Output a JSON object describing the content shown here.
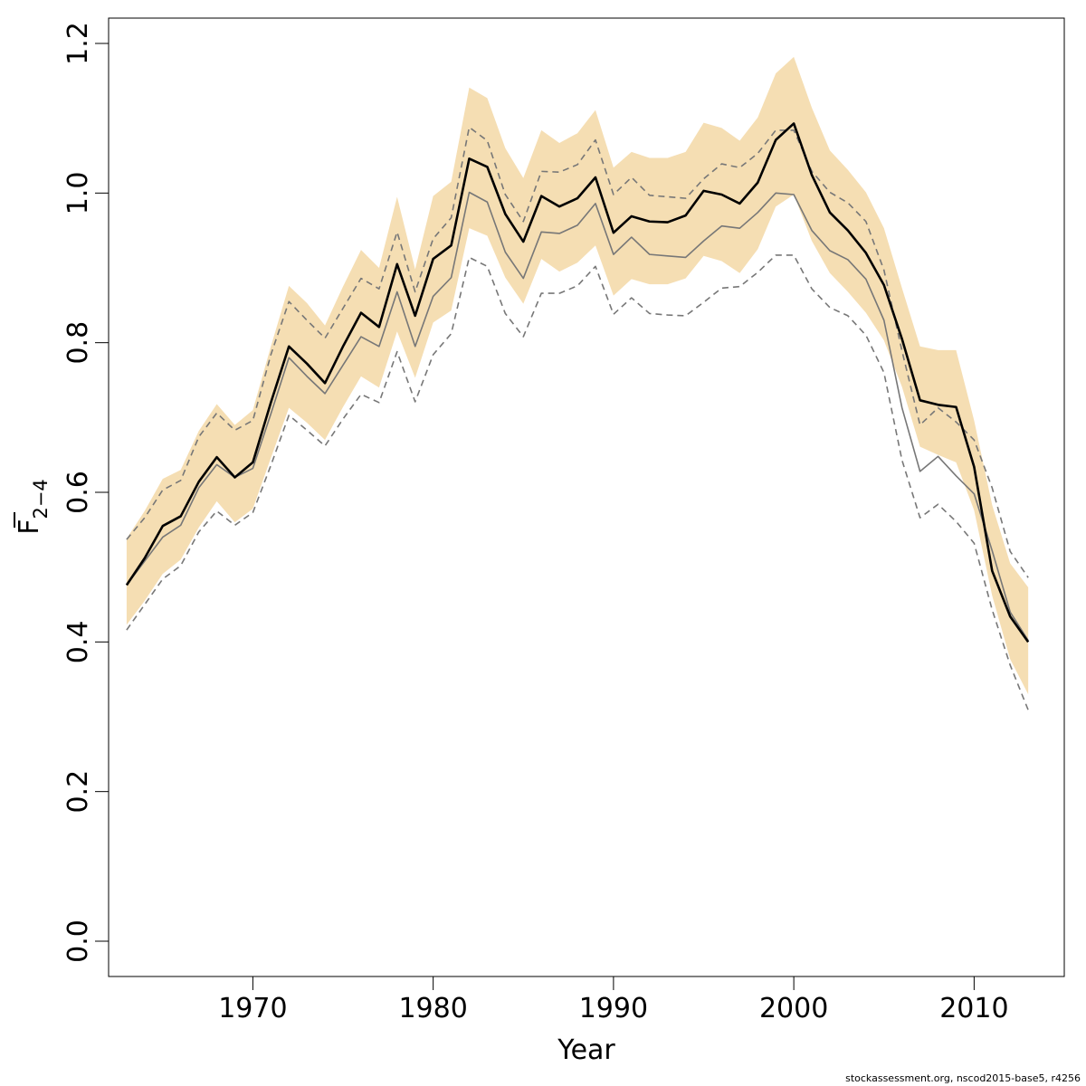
{
  "chart_data": {
    "type": "line",
    "xlabel": "Year",
    "ylabel": {
      "main": "F",
      "subscript": "2−4"
    },
    "xlim": [
      1962,
      2015
    ],
    "ylim": [
      0.0,
      1.2
    ],
    "xticks": [
      1970,
      1980,
      1990,
      2000,
      2010
    ],
    "yticks": [
      0.0,
      0.2,
      0.4,
      0.6,
      0.8,
      1.0,
      1.2
    ],
    "x": [
      1963,
      1964,
      1965,
      1966,
      1967,
      1968,
      1969,
      1970,
      1971,
      1972,
      1973,
      1974,
      1975,
      1976,
      1977,
      1978,
      1979,
      1980,
      1981,
      1982,
      1983,
      1984,
      1985,
      1986,
      1987,
      1988,
      1989,
      1990,
      1991,
      1992,
      1993,
      1994,
      1995,
      1996,
      1997,
      1998,
      1999,
      2000,
      2001,
      2002,
      2003,
      2004,
      2005,
      2006,
      2007,
      2008,
      2009,
      2010,
      2011,
      2012,
      2013
    ],
    "band": {
      "color": "#f5deb3",
      "upper": [
        0.538,
        0.575,
        0.618,
        0.63,
        0.682,
        0.718,
        0.69,
        0.71,
        0.795,
        0.876,
        0.853,
        0.823,
        0.875,
        0.924,
        0.9,
        0.995,
        0.898,
        0.996,
        1.015,
        1.141,
        1.127,
        1.06,
        1.02,
        1.084,
        1.067,
        1.08,
        1.111,
        1.034,
        1.055,
        1.047,
        1.047,
        1.055,
        1.094,
        1.087,
        1.07,
        1.101,
        1.16,
        1.182,
        1.114,
        1.057,
        1.031,
        1.001,
        0.953,
        0.873,
        0.795,
        0.79,
        0.79,
        0.696,
        0.583,
        0.505,
        0.473
      ],
      "lower": [
        0.423,
        0.455,
        0.491,
        0.51,
        0.553,
        0.588,
        0.56,
        0.578,
        0.646,
        0.713,
        0.693,
        0.67,
        0.714,
        0.755,
        0.74,
        0.815,
        0.753,
        0.827,
        0.843,
        0.953,
        0.943,
        0.887,
        0.852,
        0.912,
        0.895,
        0.907,
        0.93,
        0.863,
        0.885,
        0.878,
        0.878,
        0.886,
        0.916,
        0.909,
        0.893,
        0.925,
        0.982,
        0.998,
        0.936,
        0.893,
        0.868,
        0.84,
        0.803,
        0.741,
        0.661,
        0.65,
        0.64,
        0.576,
        0.462,
        0.377,
        0.33
      ]
    },
    "series": [
      {
        "values": [
          0.476,
          0.512,
          0.555,
          0.568,
          0.614,
          0.647,
          0.62,
          0.64,
          0.72,
          0.795,
          0.772,
          0.746,
          0.795,
          0.84,
          0.821,
          0.905,
          0.836,
          0.912,
          0.93,
          1.046,
          1.035,
          0.972,
          0.935,
          0.996,
          0.982,
          0.993,
          1.021,
          0.947,
          0.969,
          0.962,
          0.961,
          0.97,
          1.003,
          0.998,
          0.986,
          1.014,
          1.071,
          1.093,
          1.024,
          0.974,
          0.95,
          0.92,
          0.877,
          0.805,
          0.723,
          0.717,
          0.714,
          0.634,
          0.495,
          0.434,
          0.4
        ],
        "color": "#000000",
        "style": "solid",
        "width": 2.6
      },
      {
        "values": [
          0.476,
          0.508,
          0.54,
          0.556,
          0.606,
          0.637,
          0.62,
          0.632,
          0.705,
          0.78,
          0.755,
          0.732,
          0.77,
          0.808,
          0.795,
          0.868,
          0.795,
          0.862,
          0.887,
          1.001,
          0.988,
          0.921,
          0.886,
          0.948,
          0.946,
          0.957,
          0.986,
          0.918,
          0.941,
          0.918,
          0.916,
          0.914,
          0.936,
          0.956,
          0.953,
          0.974,
          1.0,
          0.998,
          0.95,
          0.923,
          0.911,
          0.885,
          0.83,
          0.713,
          0.628,
          0.648,
          0.622,
          0.598,
          0.522,
          0.44,
          0.402
        ],
        "color": "#777777",
        "style": "solid",
        "width": 1.6
      },
      {
        "values": [
          0.537,
          0.566,
          0.603,
          0.616,
          0.674,
          0.706,
          0.683,
          0.696,
          0.784,
          0.855,
          0.83,
          0.806,
          0.846,
          0.886,
          0.872,
          0.948,
          0.868,
          0.939,
          0.967,
          1.088,
          1.07,
          0.998,
          0.962,
          1.029,
          1.028,
          1.038,
          1.071,
          0.998,
          1.021,
          0.997,
          0.995,
          0.993,
          1.019,
          1.039,
          1.034,
          1.053,
          1.084,
          1.084,
          1.029,
          1.001,
          0.987,
          0.962,
          0.897,
          0.789,
          0.69,
          0.713,
          0.694,
          0.67,
          0.606,
          0.521,
          0.486
        ],
        "color": "#777777",
        "style": "dashed",
        "width": 1.6
      },
      {
        "values": [
          0.416,
          0.45,
          0.484,
          0.502,
          0.547,
          0.575,
          0.556,
          0.573,
          0.636,
          0.703,
          0.683,
          0.662,
          0.698,
          0.731,
          0.72,
          0.788,
          0.721,
          0.784,
          0.812,
          0.914,
          0.902,
          0.839,
          0.808,
          0.866,
          0.866,
          0.876,
          0.902,
          0.838,
          0.86,
          0.839,
          0.837,
          0.836,
          0.854,
          0.873,
          0.875,
          0.894,
          0.917,
          0.917,
          0.872,
          0.847,
          0.836,
          0.81,
          0.76,
          0.643,
          0.566,
          0.584,
          0.561,
          0.532,
          0.443,
          0.369,
          0.309
        ],
        "color": "#777777",
        "style": "dashed",
        "width": 1.6
      }
    ]
  },
  "footer_text": "stockassessment.org, nscod2015-base5, r4256"
}
